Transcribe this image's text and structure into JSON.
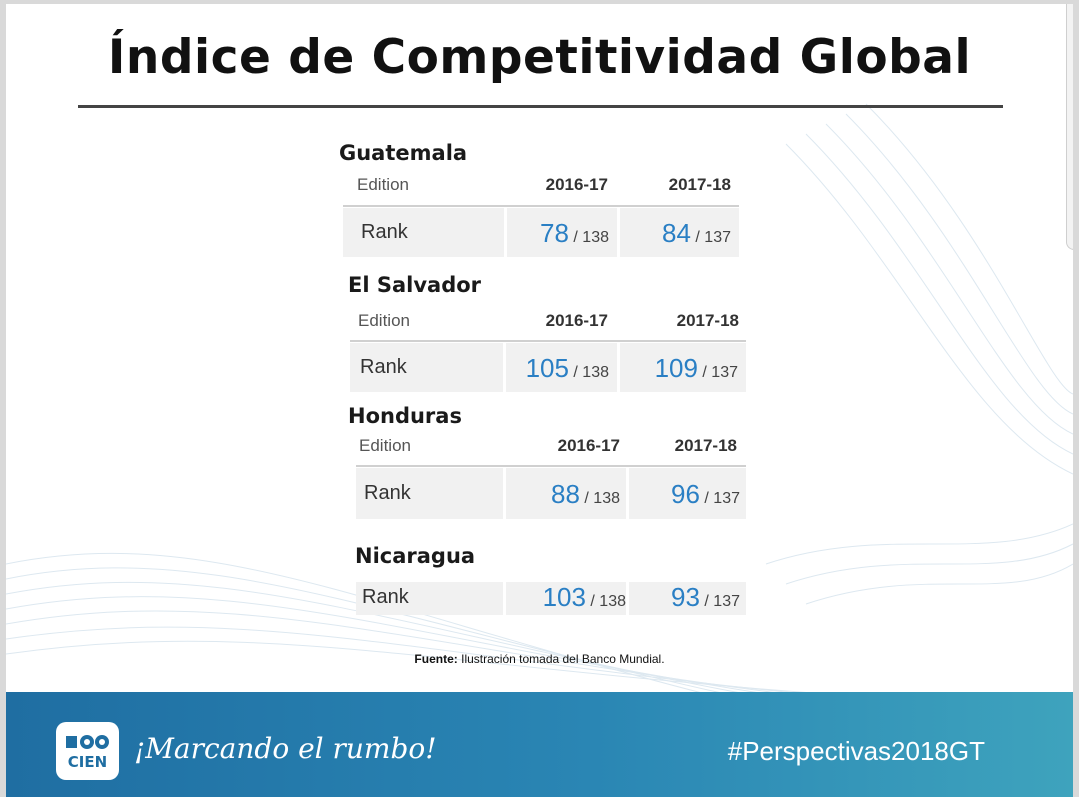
{
  "slide": {
    "title": "Índice de Competitividad Global"
  },
  "tables": [
    {
      "country": "Guatemala",
      "edition_label": "Edition",
      "years": [
        "2016-17",
        "2017-18"
      ],
      "rank_label": "Rank",
      "ranks": [
        {
          "value": "78",
          "total": "/ 138"
        },
        {
          "value": "84",
          "total": "/ 137"
        }
      ]
    },
    {
      "country": "El Salvador",
      "edition_label": "Edition",
      "years": [
        "2016-17",
        "2017-18"
      ],
      "rank_label": "Rank",
      "ranks": [
        {
          "value": "105",
          "total": "/ 138"
        },
        {
          "value": "109",
          "total": "/ 137"
        }
      ]
    },
    {
      "country": "Honduras",
      "edition_label": "Edition",
      "years": [
        "2016-17",
        "2017-18"
      ],
      "rank_label": "Rank",
      "ranks": [
        {
          "value": "88",
          "total": "/ 138"
        },
        {
          "value": "96",
          "total": "/ 137"
        }
      ]
    },
    {
      "country": "Nicaragua",
      "rank_label": "Rank",
      "ranks": [
        {
          "value": "103",
          "total": "/ 138"
        },
        {
          "value": "93",
          "total": "/ 137"
        }
      ]
    }
  ],
  "source": {
    "label": "Fuente:",
    "text": "Ilustración tomada del Banco Mundial."
  },
  "footer": {
    "logo_text": "CIEN",
    "slogan": "¡Marcando el rumbo!",
    "hashtag": "#Perspectivas2018GT"
  },
  "colors": {
    "accent_blue": "#2a7fc4",
    "footer_start": "#1f6ea2",
    "footer_end": "#3ea3bd"
  }
}
